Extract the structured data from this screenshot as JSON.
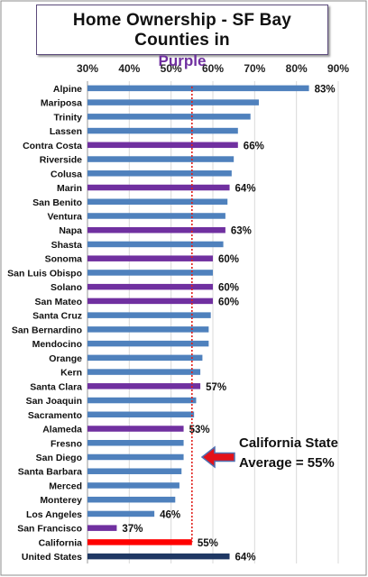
{
  "title": {
    "line1": "Home Ownership - SF Bay Counties in",
    "line2": "Purple"
  },
  "colors": {
    "default_bar": "#4f81bd",
    "bay_county_bar": "#7030a0",
    "state_bar": "#ff0000",
    "national_bar": "#1f3864",
    "average_line": "#e0201c",
    "arrow": "#e3121a",
    "arrow_outline": "#4f6fb0",
    "title_purple": "#7030a0",
    "grid": "#d9d9d9"
  },
  "chart_data": {
    "type": "bar",
    "orientation": "horizontal",
    "x_axis_position": "top",
    "xlim": [
      30,
      90
    ],
    "x_ticks": [
      "30%",
      "40%",
      "50%",
      "60%",
      "70%",
      "80%",
      "90%"
    ],
    "x_tick_values": [
      30,
      40,
      50,
      60,
      70,
      80,
      90
    ],
    "grid": true,
    "categories": [
      "Alpine",
      "Mariposa",
      "Trinity",
      "Lassen",
      "Contra Costa",
      "Riverside",
      "Colusa",
      "Marin",
      "San Benito",
      "Ventura",
      "Napa",
      "Shasta",
      "Sonoma",
      "San Luis Obispo",
      "Solano",
      "San Mateo",
      "Santa Cruz",
      "San Bernardino",
      "Mendocino",
      "Orange",
      "Kern",
      "Santa Clara",
      "San Joaquin",
      "Sacramento",
      "Alameda",
      "Fresno",
      "San Diego",
      "Santa Barbara",
      "Merced",
      "Monterey",
      "Los Angeles",
      "San Francisco",
      "California",
      "United States"
    ],
    "values": [
      83,
      71,
      69,
      66,
      66,
      65,
      64.5,
      64,
      63.5,
      63,
      63,
      62.5,
      60,
      60,
      60,
      60,
      59.5,
      59,
      59,
      57.5,
      57,
      57,
      56,
      55.5,
      53,
      53,
      53,
      52.5,
      52,
      51,
      46,
      37,
      55,
      64
    ],
    "groups": [
      "other",
      "other",
      "other",
      "other",
      "bay",
      "other",
      "other",
      "bay",
      "other",
      "other",
      "bay",
      "other",
      "bay",
      "other",
      "bay",
      "bay",
      "other",
      "other",
      "other",
      "other",
      "other",
      "bay",
      "other",
      "other",
      "bay",
      "other",
      "other",
      "other",
      "other",
      "other",
      "other",
      "bay",
      "state",
      "national"
    ],
    "data_labels": [
      "83%",
      "",
      "",
      "",
      "66%",
      "",
      "",
      "64%",
      "",
      "",
      "63%",
      "",
      "60%",
      "",
      "60%",
      "60%",
      "",
      "",
      "",
      "",
      "",
      "57%",
      "",
      "",
      "53%",
      "",
      "",
      "",
      "",
      "",
      "46%",
      "37%",
      "55%",
      "64%"
    ],
    "reference_line": {
      "value": 55
    },
    "annotation": {
      "line1": "California State",
      "line2": "Average = 55%"
    }
  }
}
